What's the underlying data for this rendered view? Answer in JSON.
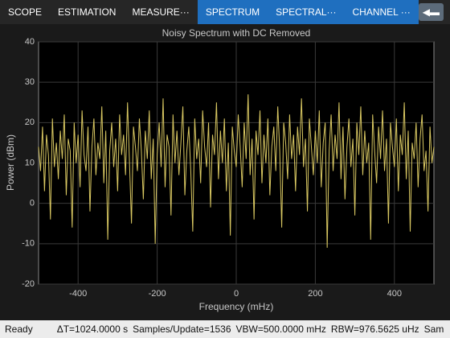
{
  "toolbar": {
    "tabs": [
      "SCOPE",
      "ESTIMATION",
      "MEASURE···",
      "SPECTRUM",
      "SPECTRAL···",
      "CHANNEL ···"
    ],
    "active": [
      3,
      4,
      5
    ]
  },
  "chart_data": {
    "type": "line",
    "title": "Noisy Spectrum with DC Removed",
    "x_label": "Frequency (mHz)",
    "y_label": "Power (dBm)",
    "xlim": [
      -500,
      500
    ],
    "xticks": [
      -400,
      -200,
      0,
      200,
      400
    ],
    "ylim": [
      -20,
      40
    ],
    "yticks": [
      -20,
      -10,
      0,
      10,
      20,
      30,
      40
    ],
    "grid": true,
    "series": [
      {
        "color": "#d9c862",
        "x": [
          -500,
          -495,
          -490,
          -485,
          -480,
          -475,
          -470,
          -465,
          -460,
          -455,
          -450,
          -445,
          -440,
          -435,
          -430,
          -425,
          -420,
          -415,
          -410,
          -405,
          -400,
          -395,
          -390,
          -385,
          -380,
          -375,
          -370,
          -365,
          -360,
          -355,
          -350,
          -345,
          -340,
          -335,
          -330,
          -325,
          -320,
          -315,
          -310,
          -305,
          -300,
          -295,
          -290,
          -285,
          -280,
          -275,
          -270,
          -265,
          -260,
          -255,
          -250,
          -245,
          -240,
          -235,
          -230,
          -225,
          -220,
          -215,
          -210,
          -205,
          -200,
          -195,
          -190,
          -185,
          -180,
          -175,
          -170,
          -165,
          -160,
          -155,
          -150,
          -145,
          -140,
          -135,
          -130,
          -125,
          -120,
          -115,
          -110,
          -105,
          -100,
          -95,
          -90,
          -85,
          -80,
          -75,
          -70,
          -65,
          -60,
          -55,
          -50,
          -45,
          -40,
          -35,
          -30,
          -25,
          -20,
          -15,
          -10,
          -5,
          0,
          5,
          10,
          15,
          20,
          25,
          30,
          35,
          40,
          45,
          50,
          55,
          60,
          65,
          70,
          75,
          80,
          85,
          90,
          95,
          100,
          105,
          110,
          115,
          120,
          125,
          130,
          135,
          140,
          145,
          150,
          155,
          160,
          165,
          170,
          175,
          180,
          185,
          190,
          195,
          200,
          205,
          210,
          215,
          220,
          225,
          230,
          235,
          240,
          245,
          250,
          255,
          260,
          265,
          270,
          275,
          280,
          285,
          290,
          295,
          300,
          305,
          310,
          315,
          320,
          325,
          330,
          335,
          340,
          345,
          350,
          355,
          360,
          365,
          370,
          375,
          380,
          385,
          390,
          395,
          400,
          405,
          410,
          415,
          420,
          425,
          430,
          435,
          440,
          445,
          450,
          455,
          460,
          465,
          470,
          475,
          480,
          485,
          490,
          495,
          500
        ],
        "values": [
          14,
          8,
          19,
          3,
          17,
          12,
          -4,
          21,
          9,
          15,
          6,
          18,
          11,
          22,
          2,
          16,
          13,
          -6,
          20,
          10,
          17,
          4,
          23,
          12,
          8,
          19,
          -2,
          14,
          21,
          7,
          15,
          11,
          24,
          5,
          18,
          -9,
          13,
          20,
          9,
          16,
          3,
          22,
          12,
          17,
          7,
          25,
          10,
          -5,
          19,
          14,
          8,
          21,
          13,
          1,
          18,
          11,
          23,
          6,
          16,
          -10,
          12,
          20,
          9,
          26,
          4,
          17,
          14,
          -3,
          22,
          10,
          18,
          7,
          15,
          24,
          2,
          13,
          19,
          8,
          -7,
          21,
          11,
          16,
          5,
          23,
          14,
          9,
          20,
          -1,
          17,
          12,
          25,
          6,
          18,
          10,
          21,
          3,
          15,
          -8,
          19,
          13,
          9,
          22,
          14,
          4,
          20,
          11,
          27,
          7,
          16,
          -4,
          18,
          12,
          23,
          5,
          17,
          10,
          21,
          2,
          14,
          19,
          8,
          24,
          13,
          -6,
          20,
          15,
          6,
          22,
          11,
          17,
          3,
          19,
          12,
          26,
          9,
          16,
          -2,
          21,
          14,
          7,
          18,
          10,
          23,
          4,
          15,
          20,
          -11,
          13,
          22,
          8,
          17,
          11,
          25,
          6,
          19,
          1,
          14,
          21,
          9,
          16,
          -3,
          20,
          12,
          24,
          7,
          18,
          10,
          15,
          -9,
          22,
          13,
          5,
          19,
          11,
          23,
          8,
          16,
          -5,
          20,
          14,
          9,
          21,
          3,
          17,
          12,
          25,
          6,
          18,
          -7,
          15,
          11,
          20,
          4,
          16,
          22,
          8,
          13,
          -2,
          19,
          10,
          14
        ]
      }
    ]
  },
  "status": [
    "Ready",
    "ΔT=1024.0000 s",
    "Samples/Update=1536",
    "VBW=500.0000 mHz",
    "RBW=976.5625 uHz",
    "Sam"
  ]
}
